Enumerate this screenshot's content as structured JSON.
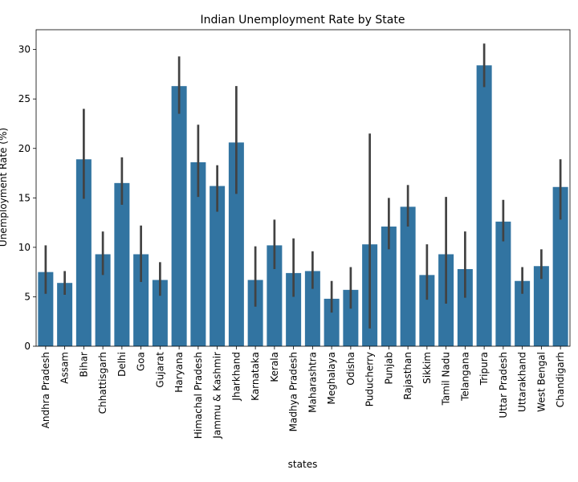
{
  "chart_data": {
    "type": "bar",
    "title": "Indian Unemployment Rate by State",
    "xlabel": "states",
    "ylabel": "Unemployment Rate (%)",
    "ylim": [
      0,
      32
    ],
    "yticks": [
      0,
      5,
      10,
      15,
      20,
      25,
      30
    ],
    "grid": false,
    "bar_color": "#3274a1",
    "error_color": "#424242",
    "categories": [
      "Andhra Pradesh",
      "Assam",
      "Bihar",
      "Chhattisgarh",
      "Delhi",
      "Goa",
      "Gujarat",
      "Haryana",
      "Himachal Pradesh",
      "Jammu & Kashmir",
      "Jharkhand",
      "Karnataka",
      "Kerala",
      "Madhya Pradesh",
      "Maharashtra",
      "Meghalaya",
      "Odisha",
      "Puducherry",
      "Punjab",
      "Rajasthan",
      "Sikkim",
      "Tamil Nadu",
      "Telangana",
      "Tripura",
      "Uttar Pradesh",
      "Uttarakhand",
      "West Bengal",
      "Chandigarh"
    ],
    "values": [
      7.5,
      6.4,
      18.9,
      9.3,
      16.5,
      9.3,
      6.7,
      26.3,
      18.6,
      16.2,
      20.6,
      6.7,
      10.2,
      7.4,
      7.6,
      4.8,
      5.7,
      10.3,
      12.1,
      14.1,
      7.2,
      9.3,
      7.8,
      28.4,
      12.6,
      6.6,
      8.1,
      16.1
    ],
    "ci_low": [
      5.3,
      5.2,
      14.9,
      7.2,
      14.3,
      6.5,
      5.1,
      23.5,
      15.1,
      13.6,
      15.4,
      4.0,
      7.8,
      5.0,
      5.8,
      3.4,
      3.8,
      1.8,
      9.8,
      12.1,
      4.7,
      4.3,
      4.9,
      26.2,
      10.6,
      5.3,
      6.8,
      12.8
    ],
    "ci_high": [
      10.2,
      7.6,
      24.0,
      11.6,
      19.1,
      12.2,
      8.5,
      29.3,
      22.4,
      18.3,
      26.3,
      10.1,
      12.8,
      10.9,
      9.6,
      6.6,
      8.0,
      21.5,
      15.0,
      16.3,
      10.3,
      15.1,
      11.6,
      30.6,
      14.8,
      8.0,
      9.8,
      18.9
    ]
  }
}
